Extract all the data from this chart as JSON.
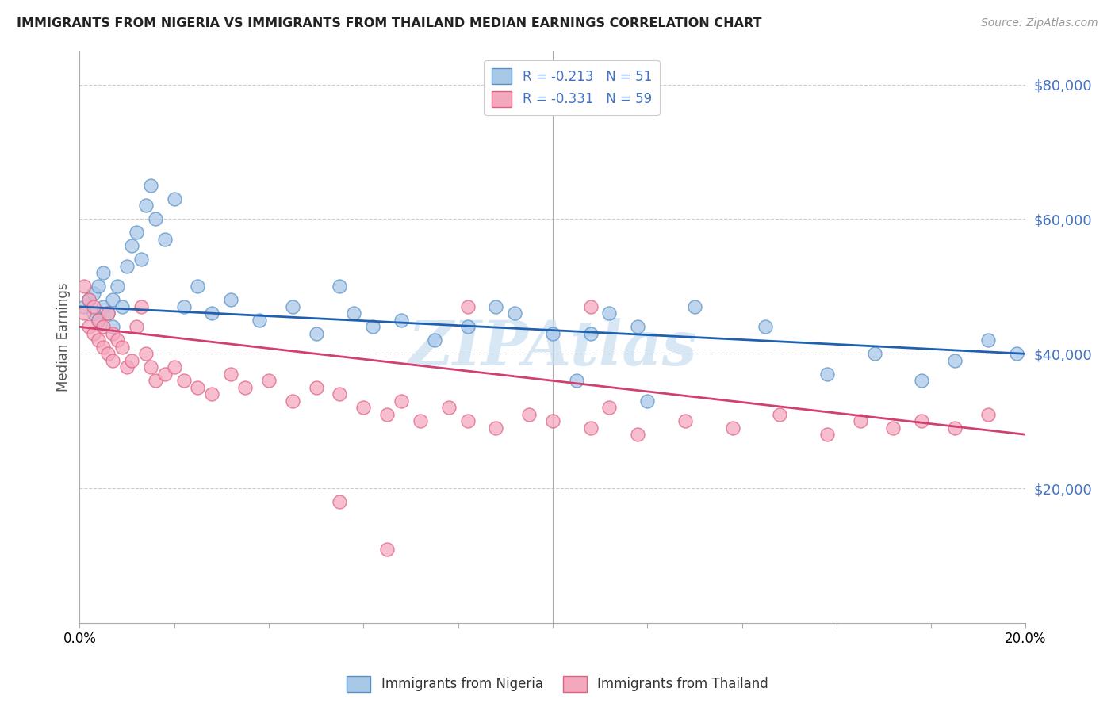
{
  "title": "IMMIGRANTS FROM NIGERIA VS IMMIGRANTS FROM THAILAND MEDIAN EARNINGS CORRELATION CHART",
  "source": "Source: ZipAtlas.com",
  "ylabel": "Median Earnings",
  "yticks": [
    20000,
    40000,
    60000,
    80000
  ],
  "ytick_labels": [
    "$20,000",
    "$40,000",
    "$60,000",
    "$80,000"
  ],
  "ymin": 0,
  "ymax": 85000,
  "xmin": 0.0,
  "xmax": 0.2,
  "legend_label_ng": "R = -0.213   N = 51",
  "legend_label_th": "R = -0.331   N = 59",
  "nigeria_face_color": "#a8c8e8",
  "nigeria_edge_color": "#5590c8",
  "thailand_face_color": "#f4a8be",
  "thailand_edge_color": "#e06080",
  "nigeria_line_color": "#2060b0",
  "thailand_line_color": "#d04070",
  "watermark": "ZIPAtlas",
  "watermark_color": "#c8ddf0",
  "ng_line_y0": 47000,
  "ng_line_y1": 40000,
  "th_line_y0": 44000,
  "th_line_y1": 28000,
  "nigeria_points_x": [
    0.001,
    0.002,
    0.003,
    0.003,
    0.004,
    0.004,
    0.005,
    0.005,
    0.006,
    0.007,
    0.007,
    0.008,
    0.009,
    0.01,
    0.011,
    0.012,
    0.013,
    0.014,
    0.015,
    0.016,
    0.018,
    0.02,
    0.022,
    0.025,
    0.028,
    0.032,
    0.038,
    0.045,
    0.05,
    0.055,
    0.058,
    0.062,
    0.068,
    0.075,
    0.082,
    0.088,
    0.092,
    0.1,
    0.105,
    0.108,
    0.112,
    0.118,
    0.12,
    0.13,
    0.145,
    0.158,
    0.168,
    0.178,
    0.185,
    0.192,
    0.198
  ],
  "nigeria_points_y": [
    47000,
    48000,
    46000,
    49000,
    45000,
    50000,
    47000,
    52000,
    46000,
    48000,
    44000,
    50000,
    47000,
    53000,
    56000,
    58000,
    54000,
    62000,
    65000,
    60000,
    57000,
    63000,
    47000,
    50000,
    46000,
    48000,
    45000,
    47000,
    43000,
    50000,
    46000,
    44000,
    45000,
    42000,
    44000,
    47000,
    46000,
    43000,
    36000,
    43000,
    46000,
    44000,
    33000,
    47000,
    44000,
    37000,
    40000,
    36000,
    39000,
    42000,
    40000
  ],
  "thailand_points_x": [
    0.001,
    0.001,
    0.002,
    0.002,
    0.003,
    0.003,
    0.004,
    0.004,
    0.005,
    0.005,
    0.006,
    0.006,
    0.007,
    0.007,
    0.008,
    0.009,
    0.01,
    0.011,
    0.012,
    0.013,
    0.014,
    0.015,
    0.016,
    0.018,
    0.02,
    0.022,
    0.025,
    0.028,
    0.032,
    0.035,
    0.04,
    0.045,
    0.05,
    0.055,
    0.06,
    0.065,
    0.068,
    0.072,
    0.078,
    0.082,
    0.088,
    0.095,
    0.1,
    0.108,
    0.112,
    0.118,
    0.128,
    0.138,
    0.148,
    0.158,
    0.165,
    0.172,
    0.178,
    0.185,
    0.192,
    0.055,
    0.065,
    0.082,
    0.108
  ],
  "thailand_points_y": [
    50000,
    46000,
    48000,
    44000,
    47000,
    43000,
    45000,
    42000,
    44000,
    41000,
    46000,
    40000,
    43000,
    39000,
    42000,
    41000,
    38000,
    39000,
    44000,
    47000,
    40000,
    38000,
    36000,
    37000,
    38000,
    36000,
    35000,
    34000,
    37000,
    35000,
    36000,
    33000,
    35000,
    34000,
    32000,
    31000,
    33000,
    30000,
    32000,
    30000,
    29000,
    31000,
    30000,
    29000,
    32000,
    28000,
    30000,
    29000,
    31000,
    28000,
    30000,
    29000,
    30000,
    29000,
    31000,
    18000,
    11000,
    47000,
    47000
  ]
}
